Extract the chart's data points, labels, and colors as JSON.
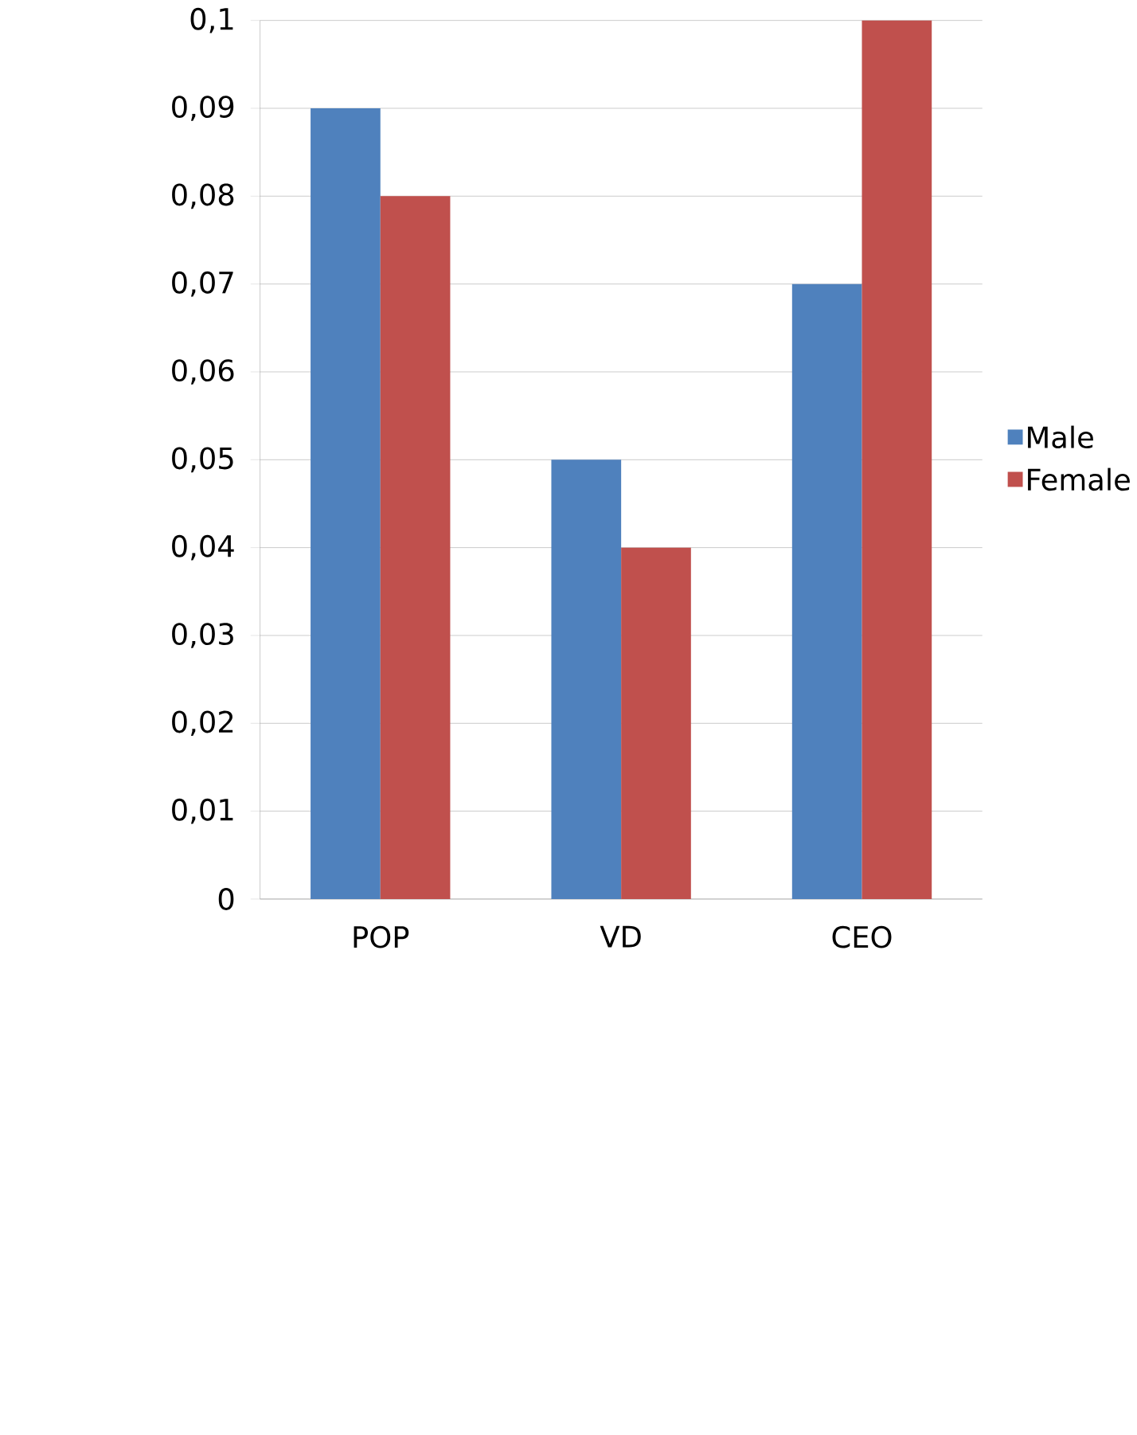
{
  "chart_data": {
    "type": "bar",
    "categories": [
      "POP",
      "VD",
      "CEO"
    ],
    "series": [
      {
        "name": "Male",
        "color": "#4f81bd",
        "values": [
          0.09,
          0.05,
          0.07
        ]
      },
      {
        "name": "Female",
        "color": "#c0504d",
        "values": [
          0.08,
          0.04,
          0.1
        ]
      }
    ],
    "ylim": [
      0,
      0.1
    ],
    "yticks": [
      0,
      {
        "value": 0.01,
        "label": "0,01"
      },
      {
        "value": 0.02,
        "label": "0,02"
      },
      {
        "value": 0.03,
        "label": "0,03"
      },
      {
        "value": 0.04,
        "label": "0,04"
      },
      {
        "value": 0.05,
        "label": "0,05"
      },
      {
        "value": 0.06,
        "label": "0,06"
      },
      {
        "value": 0.07,
        "label": "0,07"
      },
      {
        "value": 0.08,
        "label": "0,08"
      },
      {
        "value": 0.09,
        "label": "0,09"
      },
      {
        "value": 0.1,
        "label": "0,1"
      }
    ],
    "grid": "y",
    "legend": "right"
  }
}
